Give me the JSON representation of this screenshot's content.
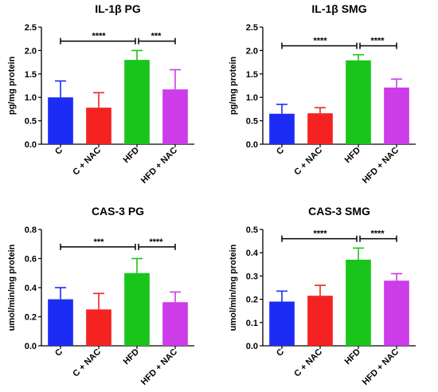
{
  "chart_data": [
    {
      "type": "bar",
      "title": "IL-1β PG",
      "ylabel": "pg/mg protein",
      "categories": [
        "C",
        "C + NAC",
        "HFD",
        "HFD + NAC"
      ],
      "values": [
        1.0,
        0.78,
        1.8,
        1.17
      ],
      "errors": [
        0.35,
        0.32,
        0.2,
        0.42
      ],
      "ylim": [
        0,
        2.5
      ],
      "yticks": [
        "0.0",
        "0.5",
        "1.0",
        "1.5",
        "2.0",
        "2.5"
      ],
      "significance": [
        {
          "from": 0,
          "to": 2,
          "label": "****"
        },
        {
          "from": 2,
          "to": 3,
          "label": "***"
        }
      ],
      "bracket_y": 2.2
    },
    {
      "type": "bar",
      "title": "IL-1β SMG",
      "ylabel": "pg/mg protein",
      "categories": [
        "C",
        "C + NAC",
        "HFD",
        "HFD + NAC"
      ],
      "values": [
        0.65,
        0.66,
        1.79,
        1.21
      ],
      "errors": [
        0.2,
        0.12,
        0.12,
        0.18
      ],
      "ylim": [
        0,
        2.5
      ],
      "yticks": [
        "0.0",
        "0.5",
        "1.0",
        "1.5",
        "2.0",
        "2.5"
      ],
      "significance": [
        {
          "from": 0,
          "to": 2,
          "label": "****"
        },
        {
          "from": 2,
          "to": 3,
          "label": "****"
        }
      ],
      "bracket_y": 2.1
    },
    {
      "type": "bar",
      "title": "CAS-3 PG",
      "ylabel": "umol/min/mg protein",
      "categories": [
        "C",
        "C + NAC",
        "HFD",
        "HFD + NAC"
      ],
      "values": [
        0.32,
        0.25,
        0.5,
        0.3
      ],
      "errors": [
        0.08,
        0.11,
        0.1,
        0.07
      ],
      "ylim": [
        0,
        0.8
      ],
      "yticks": [
        "0.0",
        "0.2",
        "0.4",
        "0.6",
        "0.8"
      ],
      "significance": [
        {
          "from": 0,
          "to": 2,
          "label": "***"
        },
        {
          "from": 2,
          "to": 3,
          "label": "****"
        }
      ],
      "bracket_y": 0.68
    },
    {
      "type": "bar",
      "title": "CAS-3 SMG",
      "ylabel": "umol/min/mg protein",
      "categories": [
        "C",
        "C + NAC",
        "HFD",
        "HFD + NAC"
      ],
      "values": [
        0.19,
        0.215,
        0.37,
        0.28
      ],
      "errors": [
        0.045,
        0.045,
        0.05,
        0.03
      ],
      "ylim": [
        0,
        0.5
      ],
      "yticks": [
        "0.0",
        "0.1",
        "0.2",
        "0.3",
        "0.4",
        "0.5"
      ],
      "significance": [
        {
          "from": 0,
          "to": 2,
          "label": "****"
        },
        {
          "from": 2,
          "to": 3,
          "label": "****"
        }
      ],
      "bracket_y": 0.46
    }
  ],
  "colors": [
    "#1d2cf4",
    "#f52222",
    "#19c41b",
    "#cc3ce8"
  ]
}
